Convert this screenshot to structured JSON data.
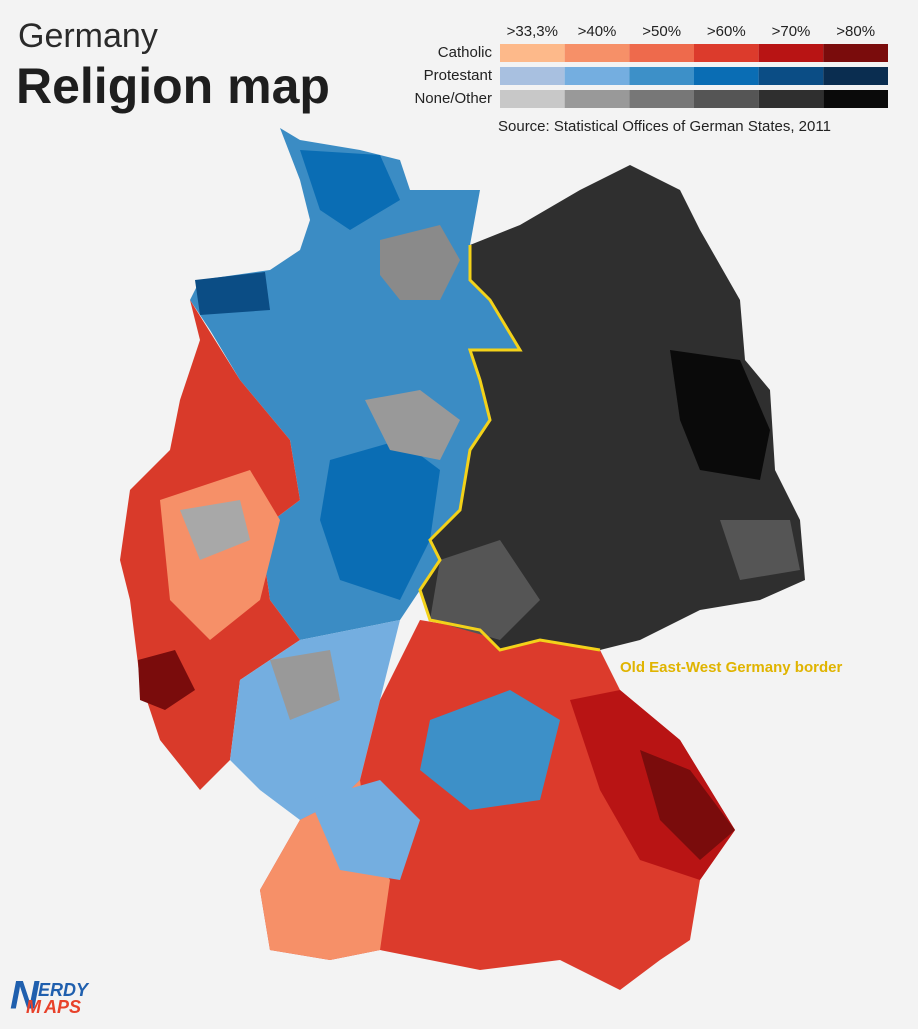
{
  "header": {
    "title": "Germany",
    "subtitle": "Religion map"
  },
  "legend": {
    "thresholds": [
      ">33,3%",
      ">40%",
      ">50%",
      ">60%",
      ">70%",
      ">80%"
    ],
    "rows": [
      {
        "label": "Catholic",
        "colors": [
          "#fdb98a",
          "#f69068",
          "#ee6a4c",
          "#dc3b2c",
          "#b81414",
          "#7a0c0c"
        ]
      },
      {
        "label": "Protestant",
        "colors": [
          "#a8c0e0",
          "#74aee0",
          "#3d90c8",
          "#0a6db4",
          "#0b4d85",
          "#0a2d50"
        ]
      },
      {
        "label": "None/Other",
        "colors": [
          "#c8c8c8",
          "#999999",
          "#777777",
          "#555555",
          "#2f2f2f",
          "#0a0a0a"
        ]
      }
    ]
  },
  "source": "Source: Statistical Offices of German States, 2011",
  "annotation": "Old East-West Germany border",
  "logo": {
    "initials": [
      "N",
      "M"
    ],
    "words": [
      "ERDY",
      "APS"
    ]
  }
}
